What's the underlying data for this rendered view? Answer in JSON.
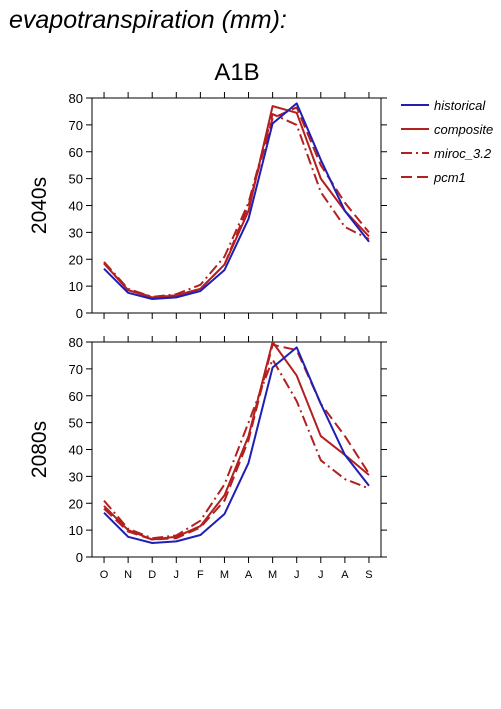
{
  "header": {
    "title": "evapotranspiration (mm):",
    "scenario": "A1B"
  },
  "colors": {
    "historical": "#1f1fb4",
    "models": "#b41f1f"
  },
  "chart_data": [
    {
      "type": "line",
      "panel_label": "2040s",
      "categories": [
        "O",
        "N",
        "D",
        "J",
        "F",
        "M",
        "A",
        "M",
        "J",
        "J",
        "A",
        "S"
      ],
      "ylim": [
        0,
        80
      ],
      "yticks": [
        0,
        10,
        20,
        30,
        40,
        50,
        60,
        70,
        80
      ],
      "series": [
        {
          "name": "historical",
          "dash": "solid",
          "values": [
            16.5,
            7.5,
            5.2,
            5.8,
            8.2,
            16.0,
            35.0,
            70.5,
            78.0,
            57.0,
            38.0,
            26.5
          ]
        },
        {
          "name": "composite",
          "dash": "solid",
          "values": [
            18.5,
            8.5,
            5.8,
            6.5,
            9.0,
            18.0,
            38.0,
            77.0,
            74.5,
            50.0,
            38.0,
            28.5
          ]
        },
        {
          "name": "miroc_3.2",
          "dash": "dashdot",
          "values": [
            19.0,
            9.0,
            6.0,
            7.0,
            10.5,
            21.0,
            41.0,
            74.0,
            70.0,
            45.0,
            32.0,
            27.5
          ]
        },
        {
          "name": "pcm1",
          "dash": "dashed",
          "values": [
            18.5,
            8.5,
            6.0,
            6.5,
            9.0,
            18.0,
            40.0,
            72.5,
            76.5,
            55.0,
            41.0,
            30.0
          ]
        }
      ]
    },
    {
      "type": "line",
      "panel_label": "2080s",
      "categories": [
        "O",
        "N",
        "D",
        "J",
        "F",
        "M",
        "A",
        "M",
        "J",
        "J",
        "A",
        "S"
      ],
      "ylim": [
        0,
        80
      ],
      "yticks": [
        0,
        10,
        20,
        30,
        40,
        50,
        60,
        70,
        80
      ],
      "series": [
        {
          "name": "historical",
          "dash": "solid",
          "values": [
            16.5,
            7.5,
            5.2,
            5.8,
            8.2,
            16.0,
            35.0,
            70.5,
            78.0,
            57.0,
            38.0,
            26.5
          ]
        },
        {
          "name": "composite",
          "dash": "solid",
          "values": [
            19.0,
            10.0,
            6.5,
            7.5,
            11.5,
            23.0,
            45.0,
            80.0,
            67.5,
            45.0,
            38.0,
            30.5
          ]
        },
        {
          "name": "miroc_3.2",
          "dash": "dashdot",
          "values": [
            21.0,
            10.5,
            7.0,
            8.0,
            13.5,
            27.0,
            50.0,
            73.5,
            58.0,
            36.0,
            29.0,
            25.5
          ]
        },
        {
          "name": "pcm1",
          "dash": "dashed",
          "values": [
            18.0,
            9.5,
            6.5,
            7.0,
            11.0,
            21.0,
            43.5,
            79.0,
            77.0,
            57.0,
            45.0,
            31.0
          ]
        }
      ]
    }
  ]
}
